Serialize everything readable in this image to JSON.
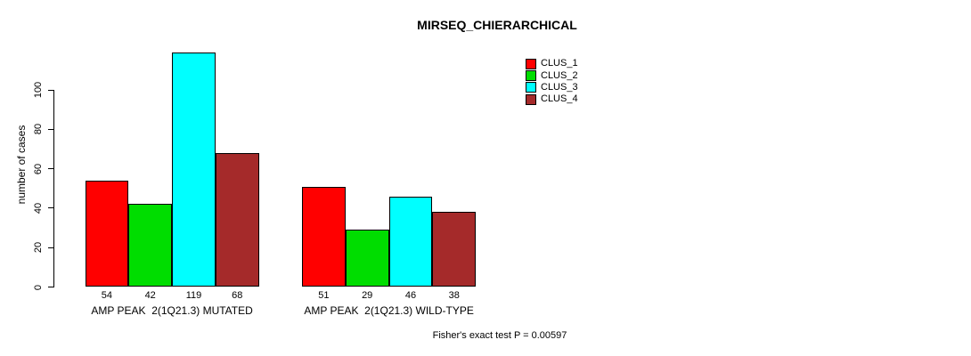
{
  "chart_data": {
    "type": "bar",
    "title": "MIRSEQ_CHIERARCHICAL",
    "ylabel": "number of cases",
    "xlabel": "",
    "ylim": [
      0,
      100
    ],
    "yticks": [
      "0",
      "20",
      "40",
      "60",
      "80",
      "100"
    ],
    "grid": false,
    "legend_position": "top-right",
    "categories": [
      "AMP PEAK  2(1Q21.3) MUTATED",
      "AMP PEAK  2(1Q21.3) WILD-TYPE"
    ],
    "series": [
      {
        "name": "CLUS_1",
        "color": "#ff0000",
        "values": [
          54,
          51
        ]
      },
      {
        "name": "CLUS_2",
        "color": "#00dd00",
        "values": [
          42,
          29
        ]
      },
      {
        "name": "CLUS_3",
        "color": "#00ffff",
        "values": [
          119,
          46
        ]
      },
      {
        "name": "CLUS_4",
        "color": "#a52a2a",
        "values": [
          68,
          38
        ]
      }
    ],
    "bar_value_labels": [
      [
        "54",
        "42",
        "119",
        "68"
      ],
      [
        "51",
        "29",
        "46",
        "38"
      ]
    ],
    "annotation": "Fisher's exact test P = 0.00597",
    "axis_color": "#000000",
    "background_color": "#ffffff"
  }
}
